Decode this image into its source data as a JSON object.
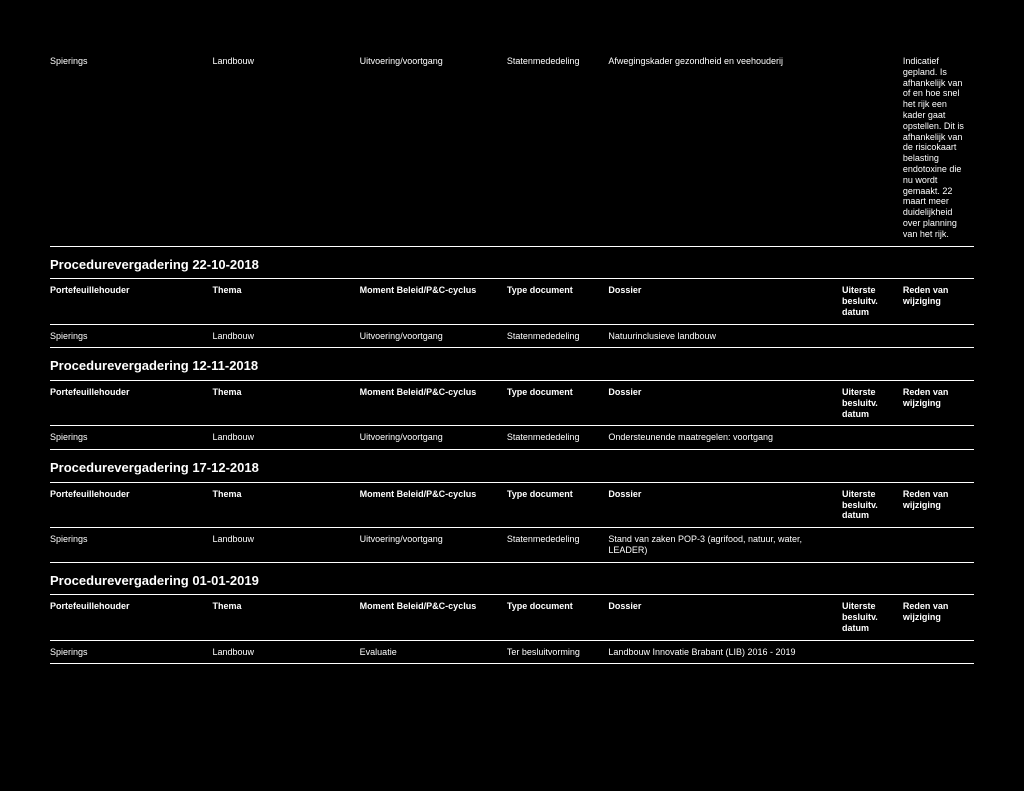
{
  "top_row": {
    "portefeuille": "Spierings",
    "thema": "Landbouw",
    "moment": "Uitvoering/voortgang",
    "type": "Statenmededeling",
    "dossier": "Afwegingskader gezondheid en veehouderij",
    "uiterste": "",
    "reden": "Indicatief gepland. Is afhankelijk van of en hoe snel het rijk een kader gaat opstellen. Dit is afhankelijk van de risicokaart belasting endotoxine die nu wordt gemaakt. 22 maart meer duidelijkheid over planning van het rijk."
  },
  "sections": [
    {
      "title": "Procedurevergadering 22-10-2018",
      "headers": {
        "portefeuille": "Portefeuillehouder",
        "thema": "Thema",
        "moment": "Moment Beleid/P&C-cyclus",
        "type": "Type document",
        "dossier": "Dossier",
        "uiterste": "Uiterste besluitv. datum",
        "reden": "Reden van wijziging"
      },
      "row": {
        "portefeuille": "Spierings",
        "thema": "Landbouw",
        "moment": "Uitvoering/voortgang",
        "type": "Statenmededeling",
        "dossier": "Natuurinclusieve landbouw",
        "uiterste": "",
        "reden": ""
      }
    },
    {
      "title": "Procedurevergadering 12-11-2018",
      "headers": {
        "portefeuille": "Portefeuillehouder",
        "thema": "Thema",
        "moment": "Moment Beleid/P&C-cyclus",
        "type": "Type document",
        "dossier": "Dossier",
        "uiterste": "Uiterste besluitv. datum",
        "reden": "Reden van wijziging"
      },
      "row": {
        "portefeuille": "Spierings",
        "thema": "Landbouw",
        "moment": "Uitvoering/voortgang",
        "type": "Statenmededeling",
        "dossier": "Ondersteunende maatregelen: voortgang",
        "uiterste": "",
        "reden": ""
      }
    },
    {
      "title": "Procedurevergadering 17-12-2018",
      "headers": {
        "portefeuille": "Portefeuillehouder",
        "thema": "Thema",
        "moment": "Moment Beleid/P&C-cyclus",
        "type": "Type document",
        "dossier": "Dossier",
        "uiterste": "Uiterste besluitv. datum",
        "reden": "Reden van wijziging"
      },
      "row": {
        "portefeuille": "Spierings",
        "thema": "Landbouw",
        "moment": "Uitvoering/voortgang",
        "type": "Statenmededeling",
        "dossier": "Stand van zaken POP-3 (agrifood, natuur, water, LEADER)",
        "uiterste": "",
        "reden": ""
      }
    },
    {
      "title": "Procedurevergadering 01-01-2019",
      "headers": {
        "portefeuille": "Portefeuillehouder",
        "thema": "Thema",
        "moment": "Moment Beleid/P&C-cyclus",
        "type": "Type document",
        "dossier": "Dossier",
        "uiterste": "Uiterste besluitv. datum",
        "reden": "Reden van wijziging"
      },
      "row": {
        "portefeuille": "Spierings",
        "thema": "Landbouw",
        "moment": "Evaluatie",
        "type": "Ter besluitvorming",
        "dossier": "Landbouw Innovatie Brabant (LIB) 2016 - 2019",
        "uiterste": "",
        "reden": ""
      }
    }
  ]
}
